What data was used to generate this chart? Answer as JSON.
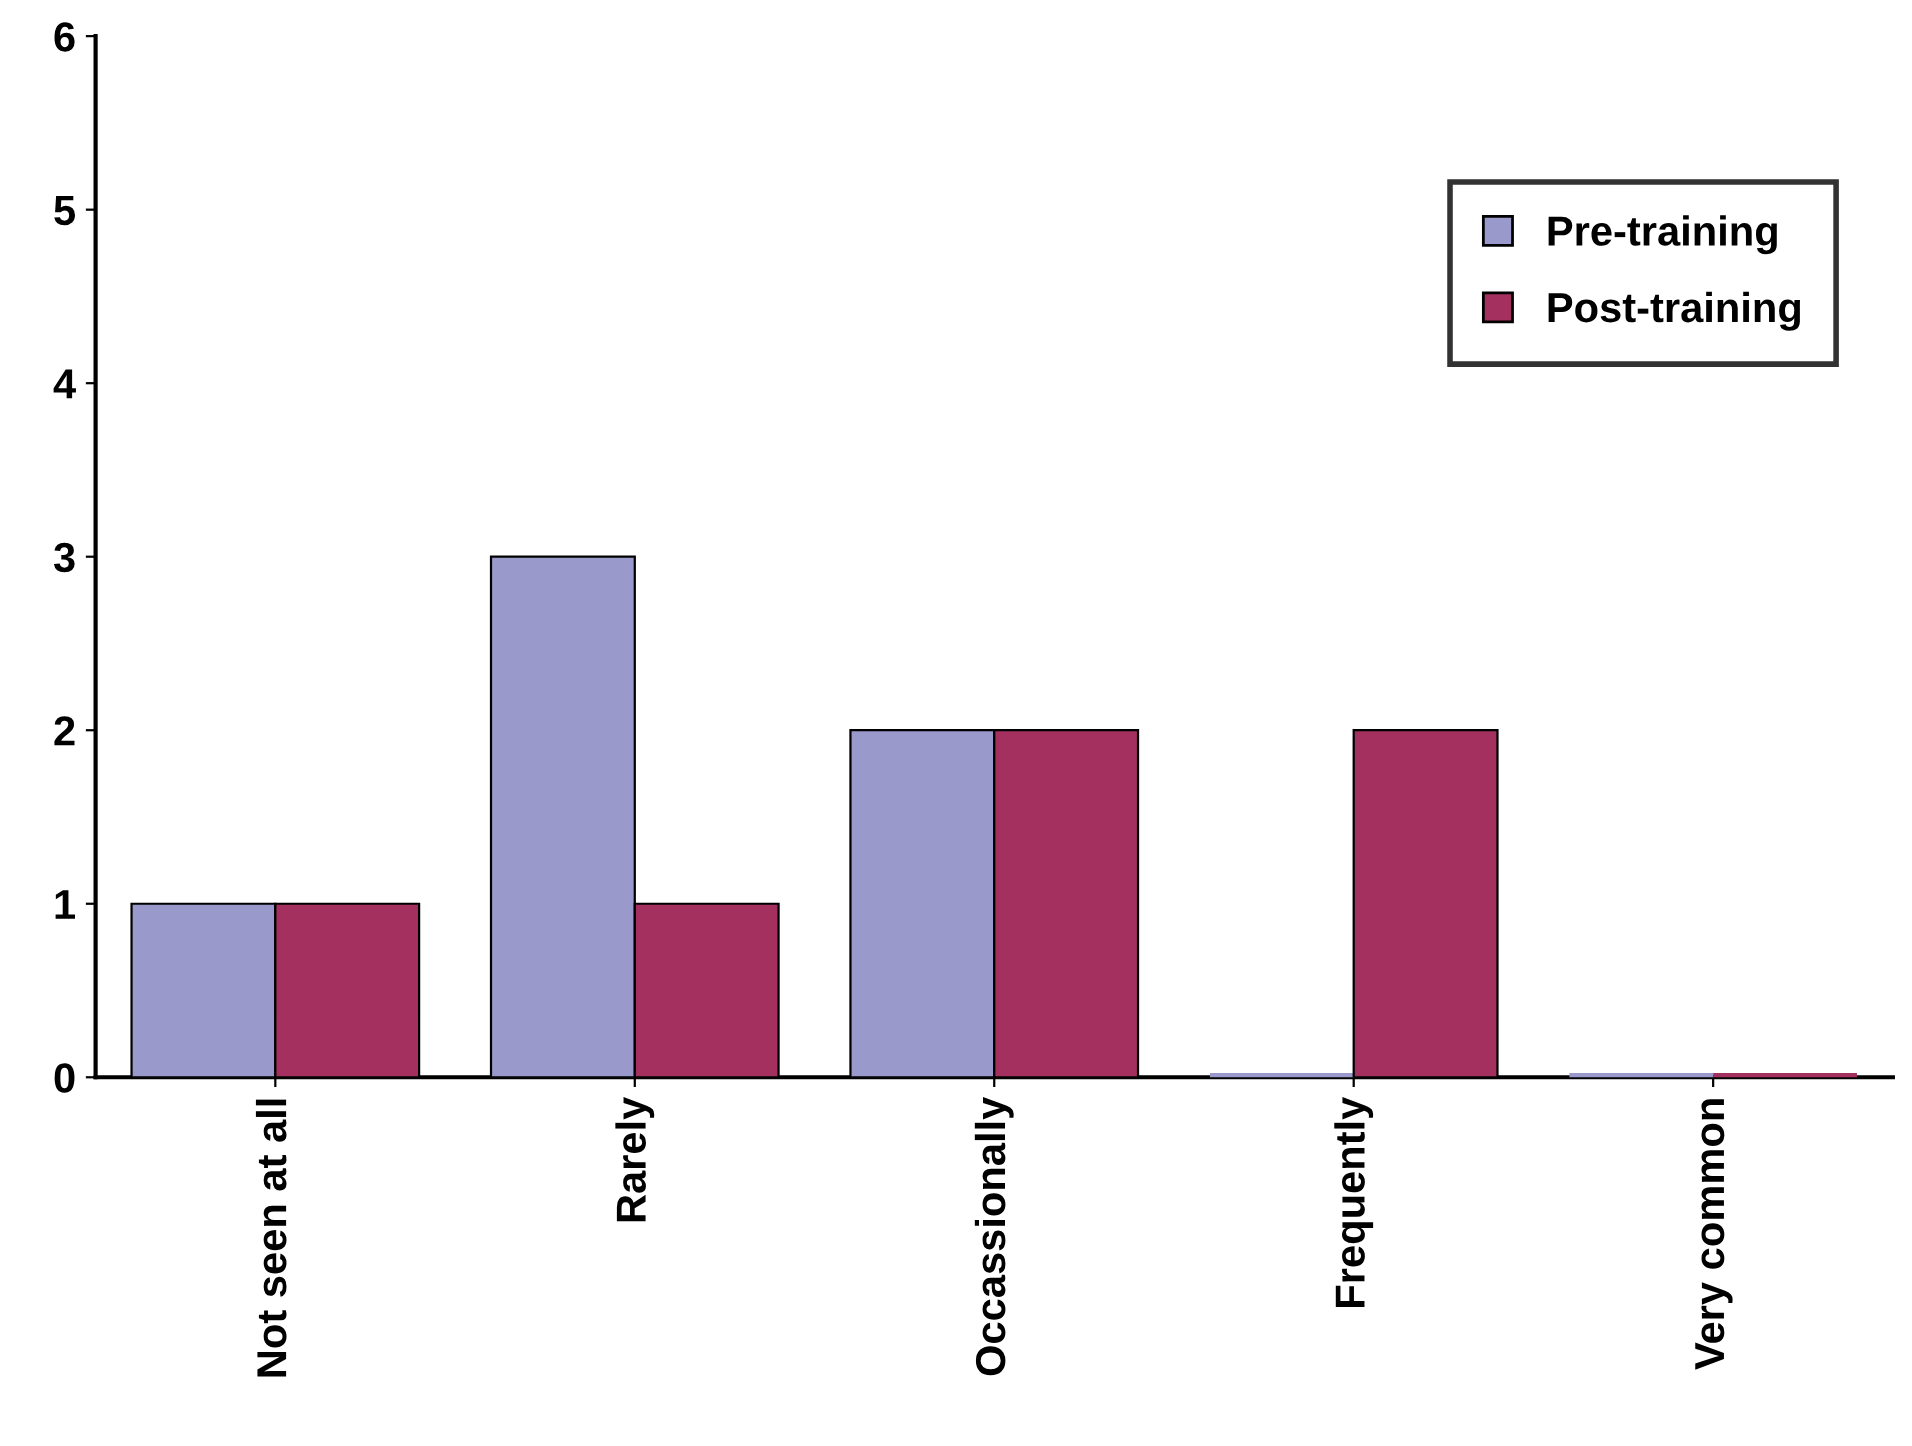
{
  "chart_data": {
    "type": "bar",
    "categories": [
      "Not seen at all",
      "Rarely",
      "Occassionally",
      "Frequently",
      "Very common"
    ],
    "series": [
      {
        "name": "Pre-training",
        "color": "#9999cc",
        "values": [
          1,
          3,
          2,
          0,
          0
        ]
      },
      {
        "name": "Post-training",
        "color": "#a3305f",
        "values": [
          1,
          1,
          2,
          2,
          0
        ]
      }
    ],
    "ylim": [
      0,
      6
    ],
    "yticks": [
      0,
      1,
      2,
      3,
      4,
      5,
      6
    ],
    "grid": false,
    "legend": "top right"
  }
}
